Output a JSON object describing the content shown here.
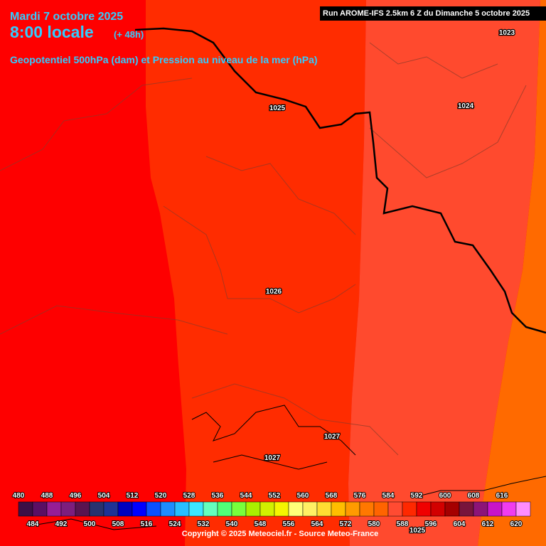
{
  "header": {
    "date": "Mardi 7 octobre 2025",
    "time": "8:00 locale",
    "lead": "(+ 48h)",
    "parameter": "Geopotentiel 500hPa (dam) et Pression au niveau de la mer (hPa)",
    "run": "Run AROME-IFS 2.5km 6 Z du Dimanche 5 octobre 2025"
  },
  "pressure_labels": [
    "1023",
    "1025",
    "1024",
    "1026",
    "1027",
    "1027",
    "1025"
  ],
  "legend": {
    "top_labels": [
      480,
      488,
      496,
      504,
      512,
      520,
      528,
      536,
      544,
      552,
      560,
      568,
      576,
      584,
      592,
      600,
      608,
      616
    ],
    "bottom_labels": [
      484,
      492,
      500,
      508,
      516,
      524,
      532,
      540,
      548,
      556,
      564,
      572,
      580,
      588,
      596,
      604,
      612,
      620
    ],
    "colors": [
      "#3c0f46",
      "#5a0f64",
      "#961e96",
      "#7d1e7d",
      "#5a1450",
      "#28326e",
      "#1e3296",
      "#0000be",
      "#0000ff",
      "#0a50ff",
      "#1e8cff",
      "#28beff",
      "#3ce6ff",
      "#64ffbe",
      "#50ff78",
      "#78ff3c",
      "#aaf000",
      "#d2f000",
      "#f5f500",
      "#ffff78",
      "#fff064",
      "#ffdc32",
      "#ffbe00",
      "#ff9b00",
      "#ff7800",
      "#ff6400",
      "#ff4b32",
      "#ff2800",
      "#f00000",
      "#d20000",
      "#a50000",
      "#78143c",
      "#8c1478",
      "#c814c8",
      "#f03cf0",
      "#ff8cff"
    ]
  },
  "footer": {
    "copyright": "Copyright © 2025 Meteociel.fr - Source Meteo-France"
  }
}
